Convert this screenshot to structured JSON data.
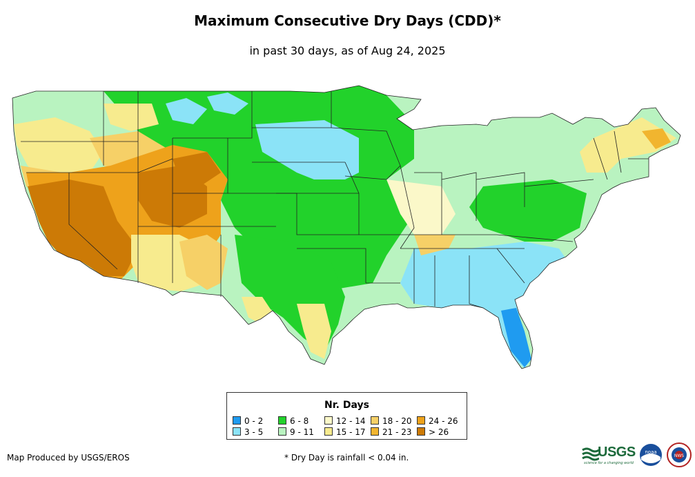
{
  "title": "Maximum Consecutive Dry Days (CDD)*",
  "subtitle": "in past 30 days, as of Aug 24, 2025",
  "legend": {
    "title": "Nr. Days",
    "items": [
      {
        "label": "0 - 2",
        "color": "#1f9bf0"
      },
      {
        "label": "3 - 5",
        "color": "#8be3f7"
      },
      {
        "label": "6 - 8",
        "color": "#22d22b"
      },
      {
        "label": "9 - 11",
        "color": "#b9f3c0"
      },
      {
        "label": "12 - 14",
        "color": "#fbf8c9"
      },
      {
        "label": "15 - 17",
        "color": "#f7eb8e"
      },
      {
        "label": "18 - 20",
        "color": "#f6d067"
      },
      {
        "label": "21 - 23",
        "color": "#f1b52f"
      },
      {
        "label": "24 - 26",
        "color": "#eea21b"
      },
      {
        "label": "> 26",
        "color": "#cc7a06"
      }
    ]
  },
  "credit": "Map Produced by USGS/EROS",
  "footnote": "* Dry Day is rainfall < 0.04 in.",
  "logos": {
    "usgs": "USGS",
    "usgs_tagline": "science for a changing world",
    "noaa": "noaa",
    "nws": "NWS"
  }
}
